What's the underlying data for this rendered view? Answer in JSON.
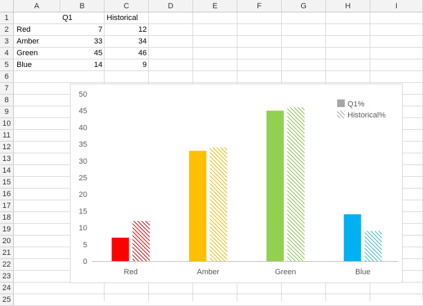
{
  "sheet": {
    "columns": [
      "A",
      "B",
      "C",
      "D",
      "E",
      "F",
      "G",
      "H",
      "I"
    ],
    "rows": [
      "1",
      "2",
      "3",
      "4",
      "5",
      "6",
      "7",
      "8",
      "9",
      "10",
      "11",
      "12",
      "13",
      "14",
      "15",
      "16",
      "17",
      "18",
      "19",
      "20",
      "21",
      "22",
      "23",
      "24",
      "25"
    ],
    "header_row": {
      "b": "Q1",
      "c": "Historical"
    },
    "data_rows": [
      {
        "label": "Red",
        "q1": "7",
        "hist": "12"
      },
      {
        "label": "Amber",
        "q1": "33",
        "hist": "34"
      },
      {
        "label": "Green",
        "q1": "45",
        "hist": "46"
      },
      {
        "label": "Blue",
        "q1": "14",
        "hist": "9"
      }
    ]
  },
  "chart_data": {
    "type": "bar",
    "categories": [
      "Red",
      "Amber",
      "Green",
      "Blue"
    ],
    "series": [
      {
        "name": "Q1%",
        "values": [
          7,
          33,
          45,
          14
        ],
        "pattern": "solid"
      },
      {
        "name": "Historical%",
        "values": [
          12,
          34,
          46,
          9
        ],
        "pattern": "hatched"
      }
    ],
    "category_colors": [
      "#ff0000",
      "#ffc000",
      "#92d050",
      "#00b0f0"
    ],
    "hatch_colors": [
      "#c00000",
      "#e6b800",
      "#7fbf3f",
      "#33b5c8"
    ],
    "legend_swatch_color": "#a6a6a6",
    "yticks": [
      "0",
      "5",
      "10",
      "15",
      "20",
      "25",
      "30",
      "35",
      "40",
      "45",
      "50"
    ],
    "ylim": [
      0,
      50
    ],
    "grid": false,
    "legend_position": "top-right"
  }
}
